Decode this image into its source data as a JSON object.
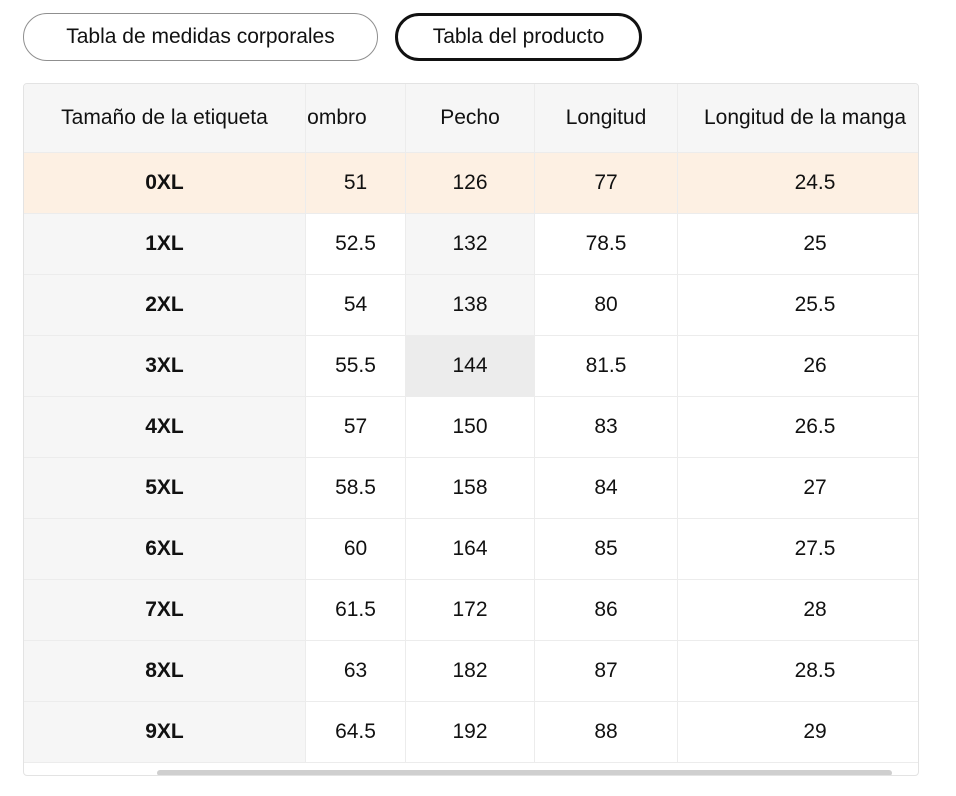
{
  "tabs": [
    {
      "label": "Tabla de medidas corporales",
      "active": false
    },
    {
      "label": "Tabla del producto",
      "active": true
    }
  ],
  "table": {
    "headers": [
      "Tamaño de la etiqueta",
      "Hombro",
      "Pecho",
      "Longitud",
      "Longitud de la manga"
    ],
    "rows": [
      [
        "0XL",
        "51",
        "126",
        "77",
        "24.5"
      ],
      [
        "1XL",
        "52.5",
        "132",
        "78.5",
        "25"
      ],
      [
        "2XL",
        "54",
        "138",
        "80",
        "25.5"
      ],
      [
        "3XL",
        "55.5",
        "144",
        "81.5",
        "26"
      ],
      [
        "4XL",
        "57",
        "150",
        "83",
        "26.5"
      ],
      [
        "5XL",
        "58.5",
        "158",
        "84",
        "27"
      ],
      [
        "6XL",
        "60",
        "164",
        "85",
        "27.5"
      ],
      [
        "7XL",
        "61.5",
        "172",
        "86",
        "28"
      ],
      [
        "8XL",
        "63",
        "182",
        "87",
        "28.5"
      ],
      [
        "9XL",
        "64.5",
        "192",
        "88",
        "29"
      ]
    ],
    "highlighted_row": 0
  },
  "colors": {
    "highlight_row": "#fdf0e3",
    "header_bg": "#f6f6f6",
    "border": "#ececec"
  }
}
